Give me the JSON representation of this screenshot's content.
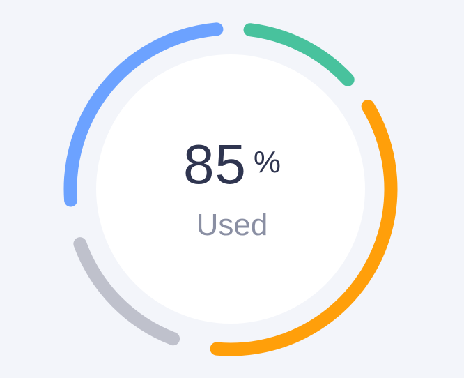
{
  "gauge": {
    "value": "85",
    "unit": "%",
    "label": "Used"
  },
  "segments": [
    {
      "name": "blue-segment",
      "color": "#6CA2FF",
      "start_deg": 266,
      "end_deg": 355
    },
    {
      "name": "green-segment",
      "color": "#48C29D",
      "start_deg": 7,
      "end_deg": 47
    },
    {
      "name": "orange-segment",
      "color": "#FF9F0A",
      "start_deg": 59,
      "end_deg": 185
    },
    {
      "name": "gray-segment",
      "color": "#BFC1CC",
      "start_deg": 201,
      "end_deg": 250
    }
  ]
}
